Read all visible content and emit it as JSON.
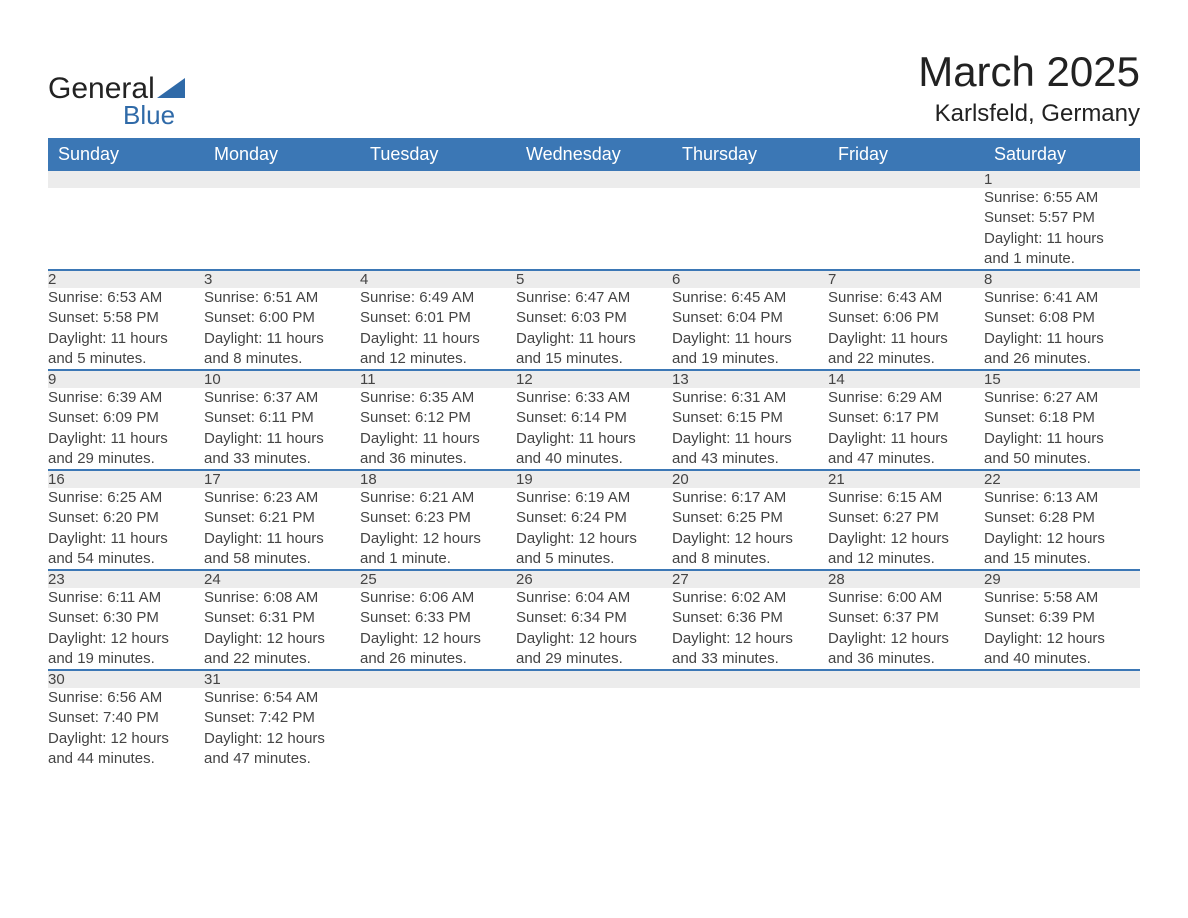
{
  "brand": {
    "word1": "General",
    "word2": "Blue",
    "accent_color": "#2f6aa8"
  },
  "title": {
    "month": "March 2025",
    "location": "Karlsfeld, Germany"
  },
  "style": {
    "header_bg": "#3b77b5",
    "header_fg": "#ffffff",
    "daynum_bg": "#ececec",
    "row_border": "#3b77b5",
    "body_font_size": 15,
    "header_font_size": 18,
    "title_font_size": 42,
    "location_font_size": 24
  },
  "weekday_labels": [
    "Sunday",
    "Monday",
    "Tuesday",
    "Wednesday",
    "Thursday",
    "Friday",
    "Saturday"
  ],
  "weeks": [
    [
      null,
      null,
      null,
      null,
      null,
      null,
      {
        "n": "1",
        "sr": "Sunrise: 6:55 AM",
        "ss": "Sunset: 5:57 PM",
        "d1": "Daylight: 11 hours",
        "d2": "and 1 minute."
      }
    ],
    [
      {
        "n": "2",
        "sr": "Sunrise: 6:53 AM",
        "ss": "Sunset: 5:58 PM",
        "d1": "Daylight: 11 hours",
        "d2": "and 5 minutes."
      },
      {
        "n": "3",
        "sr": "Sunrise: 6:51 AM",
        "ss": "Sunset: 6:00 PM",
        "d1": "Daylight: 11 hours",
        "d2": "and 8 minutes."
      },
      {
        "n": "4",
        "sr": "Sunrise: 6:49 AM",
        "ss": "Sunset: 6:01 PM",
        "d1": "Daylight: 11 hours",
        "d2": "and 12 minutes."
      },
      {
        "n": "5",
        "sr": "Sunrise: 6:47 AM",
        "ss": "Sunset: 6:03 PM",
        "d1": "Daylight: 11 hours",
        "d2": "and 15 minutes."
      },
      {
        "n": "6",
        "sr": "Sunrise: 6:45 AM",
        "ss": "Sunset: 6:04 PM",
        "d1": "Daylight: 11 hours",
        "d2": "and 19 minutes."
      },
      {
        "n": "7",
        "sr": "Sunrise: 6:43 AM",
        "ss": "Sunset: 6:06 PM",
        "d1": "Daylight: 11 hours",
        "d2": "and 22 minutes."
      },
      {
        "n": "8",
        "sr": "Sunrise: 6:41 AM",
        "ss": "Sunset: 6:08 PM",
        "d1": "Daylight: 11 hours",
        "d2": "and 26 minutes."
      }
    ],
    [
      {
        "n": "9",
        "sr": "Sunrise: 6:39 AM",
        "ss": "Sunset: 6:09 PM",
        "d1": "Daylight: 11 hours",
        "d2": "and 29 minutes."
      },
      {
        "n": "10",
        "sr": "Sunrise: 6:37 AM",
        "ss": "Sunset: 6:11 PM",
        "d1": "Daylight: 11 hours",
        "d2": "and 33 minutes."
      },
      {
        "n": "11",
        "sr": "Sunrise: 6:35 AM",
        "ss": "Sunset: 6:12 PM",
        "d1": "Daylight: 11 hours",
        "d2": "and 36 minutes."
      },
      {
        "n": "12",
        "sr": "Sunrise: 6:33 AM",
        "ss": "Sunset: 6:14 PM",
        "d1": "Daylight: 11 hours",
        "d2": "and 40 minutes."
      },
      {
        "n": "13",
        "sr": "Sunrise: 6:31 AM",
        "ss": "Sunset: 6:15 PM",
        "d1": "Daylight: 11 hours",
        "d2": "and 43 minutes."
      },
      {
        "n": "14",
        "sr": "Sunrise: 6:29 AM",
        "ss": "Sunset: 6:17 PM",
        "d1": "Daylight: 11 hours",
        "d2": "and 47 minutes."
      },
      {
        "n": "15",
        "sr": "Sunrise: 6:27 AM",
        "ss": "Sunset: 6:18 PM",
        "d1": "Daylight: 11 hours",
        "d2": "and 50 minutes."
      }
    ],
    [
      {
        "n": "16",
        "sr": "Sunrise: 6:25 AM",
        "ss": "Sunset: 6:20 PM",
        "d1": "Daylight: 11 hours",
        "d2": "and 54 minutes."
      },
      {
        "n": "17",
        "sr": "Sunrise: 6:23 AM",
        "ss": "Sunset: 6:21 PM",
        "d1": "Daylight: 11 hours",
        "d2": "and 58 minutes."
      },
      {
        "n": "18",
        "sr": "Sunrise: 6:21 AM",
        "ss": "Sunset: 6:23 PM",
        "d1": "Daylight: 12 hours",
        "d2": "and 1 minute."
      },
      {
        "n": "19",
        "sr": "Sunrise: 6:19 AM",
        "ss": "Sunset: 6:24 PM",
        "d1": "Daylight: 12 hours",
        "d2": "and 5 minutes."
      },
      {
        "n": "20",
        "sr": "Sunrise: 6:17 AM",
        "ss": "Sunset: 6:25 PM",
        "d1": "Daylight: 12 hours",
        "d2": "and 8 minutes."
      },
      {
        "n": "21",
        "sr": "Sunrise: 6:15 AM",
        "ss": "Sunset: 6:27 PM",
        "d1": "Daylight: 12 hours",
        "d2": "and 12 minutes."
      },
      {
        "n": "22",
        "sr": "Sunrise: 6:13 AM",
        "ss": "Sunset: 6:28 PM",
        "d1": "Daylight: 12 hours",
        "d2": "and 15 minutes."
      }
    ],
    [
      {
        "n": "23",
        "sr": "Sunrise: 6:11 AM",
        "ss": "Sunset: 6:30 PM",
        "d1": "Daylight: 12 hours",
        "d2": "and 19 minutes."
      },
      {
        "n": "24",
        "sr": "Sunrise: 6:08 AM",
        "ss": "Sunset: 6:31 PM",
        "d1": "Daylight: 12 hours",
        "d2": "and 22 minutes."
      },
      {
        "n": "25",
        "sr": "Sunrise: 6:06 AM",
        "ss": "Sunset: 6:33 PM",
        "d1": "Daylight: 12 hours",
        "d2": "and 26 minutes."
      },
      {
        "n": "26",
        "sr": "Sunrise: 6:04 AM",
        "ss": "Sunset: 6:34 PM",
        "d1": "Daylight: 12 hours",
        "d2": "and 29 minutes."
      },
      {
        "n": "27",
        "sr": "Sunrise: 6:02 AM",
        "ss": "Sunset: 6:36 PM",
        "d1": "Daylight: 12 hours",
        "d2": "and 33 minutes."
      },
      {
        "n": "28",
        "sr": "Sunrise: 6:00 AM",
        "ss": "Sunset: 6:37 PM",
        "d1": "Daylight: 12 hours",
        "d2": "and 36 minutes."
      },
      {
        "n": "29",
        "sr": "Sunrise: 5:58 AM",
        "ss": "Sunset: 6:39 PM",
        "d1": "Daylight: 12 hours",
        "d2": "and 40 minutes."
      }
    ],
    [
      {
        "n": "30",
        "sr": "Sunrise: 6:56 AM",
        "ss": "Sunset: 7:40 PM",
        "d1": "Daylight: 12 hours",
        "d2": "and 44 minutes."
      },
      {
        "n": "31",
        "sr": "Sunrise: 6:54 AM",
        "ss": "Sunset: 7:42 PM",
        "d1": "Daylight: 12 hours",
        "d2": "and 47 minutes."
      },
      null,
      null,
      null,
      null,
      null
    ]
  ]
}
